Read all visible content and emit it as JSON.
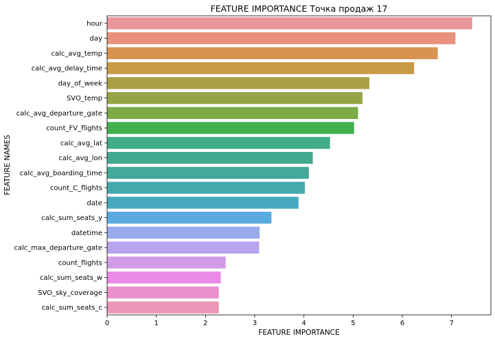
{
  "chart_data": {
    "type": "bar",
    "orientation": "horizontal",
    "title": "FEATURE IMPORTANCE Точка продаж 17",
    "xlabel": "FEATURE IMPORTANCE",
    "ylabel": "FEATURE NAMES",
    "xlim": [
      0,
      7.8
    ],
    "xticks": [
      0,
      1,
      2,
      3,
      4,
      5,
      6,
      7
    ],
    "grid": false,
    "legend": "none",
    "categories": [
      "hour",
      "day",
      "calc_avg_temp",
      "calc_avg_delay_time",
      "day_of_week",
      "SVO_temp",
      "calc_avg_departure_gate",
      "count_FV_flights",
      "calc_avg_lat",
      "calc_avg_lon",
      "calc_avg_boarding_time",
      "count_C_flights",
      "date",
      "calc_sum_seats_y",
      "datetime",
      "calc_max_departure_gate",
      "count_flights",
      "calc_sum_seats_w",
      "SVO_sky_coverage",
      "calc_sum_seats_c"
    ],
    "values": [
      7.42,
      7.08,
      6.72,
      6.24,
      5.33,
      5.19,
      5.1,
      5.02,
      4.53,
      4.18,
      4.1,
      4.02,
      3.89,
      3.34,
      3.1,
      3.09,
      2.41,
      2.31,
      2.27,
      2.27
    ],
    "colors": [
      "#e8969a",
      "#e8917d",
      "#d99350",
      "#c99a45",
      "#ab9f45",
      "#97a445",
      "#7aa945",
      "#43b04f",
      "#41ac86",
      "#42a98f",
      "#43a99a",
      "#45a9ac",
      "#48a8bf",
      "#5aaae0",
      "#97abec",
      "#b8a4ec",
      "#d29be8",
      "#e98ae6",
      "#ea91cd",
      "#ea96b8"
    ]
  }
}
